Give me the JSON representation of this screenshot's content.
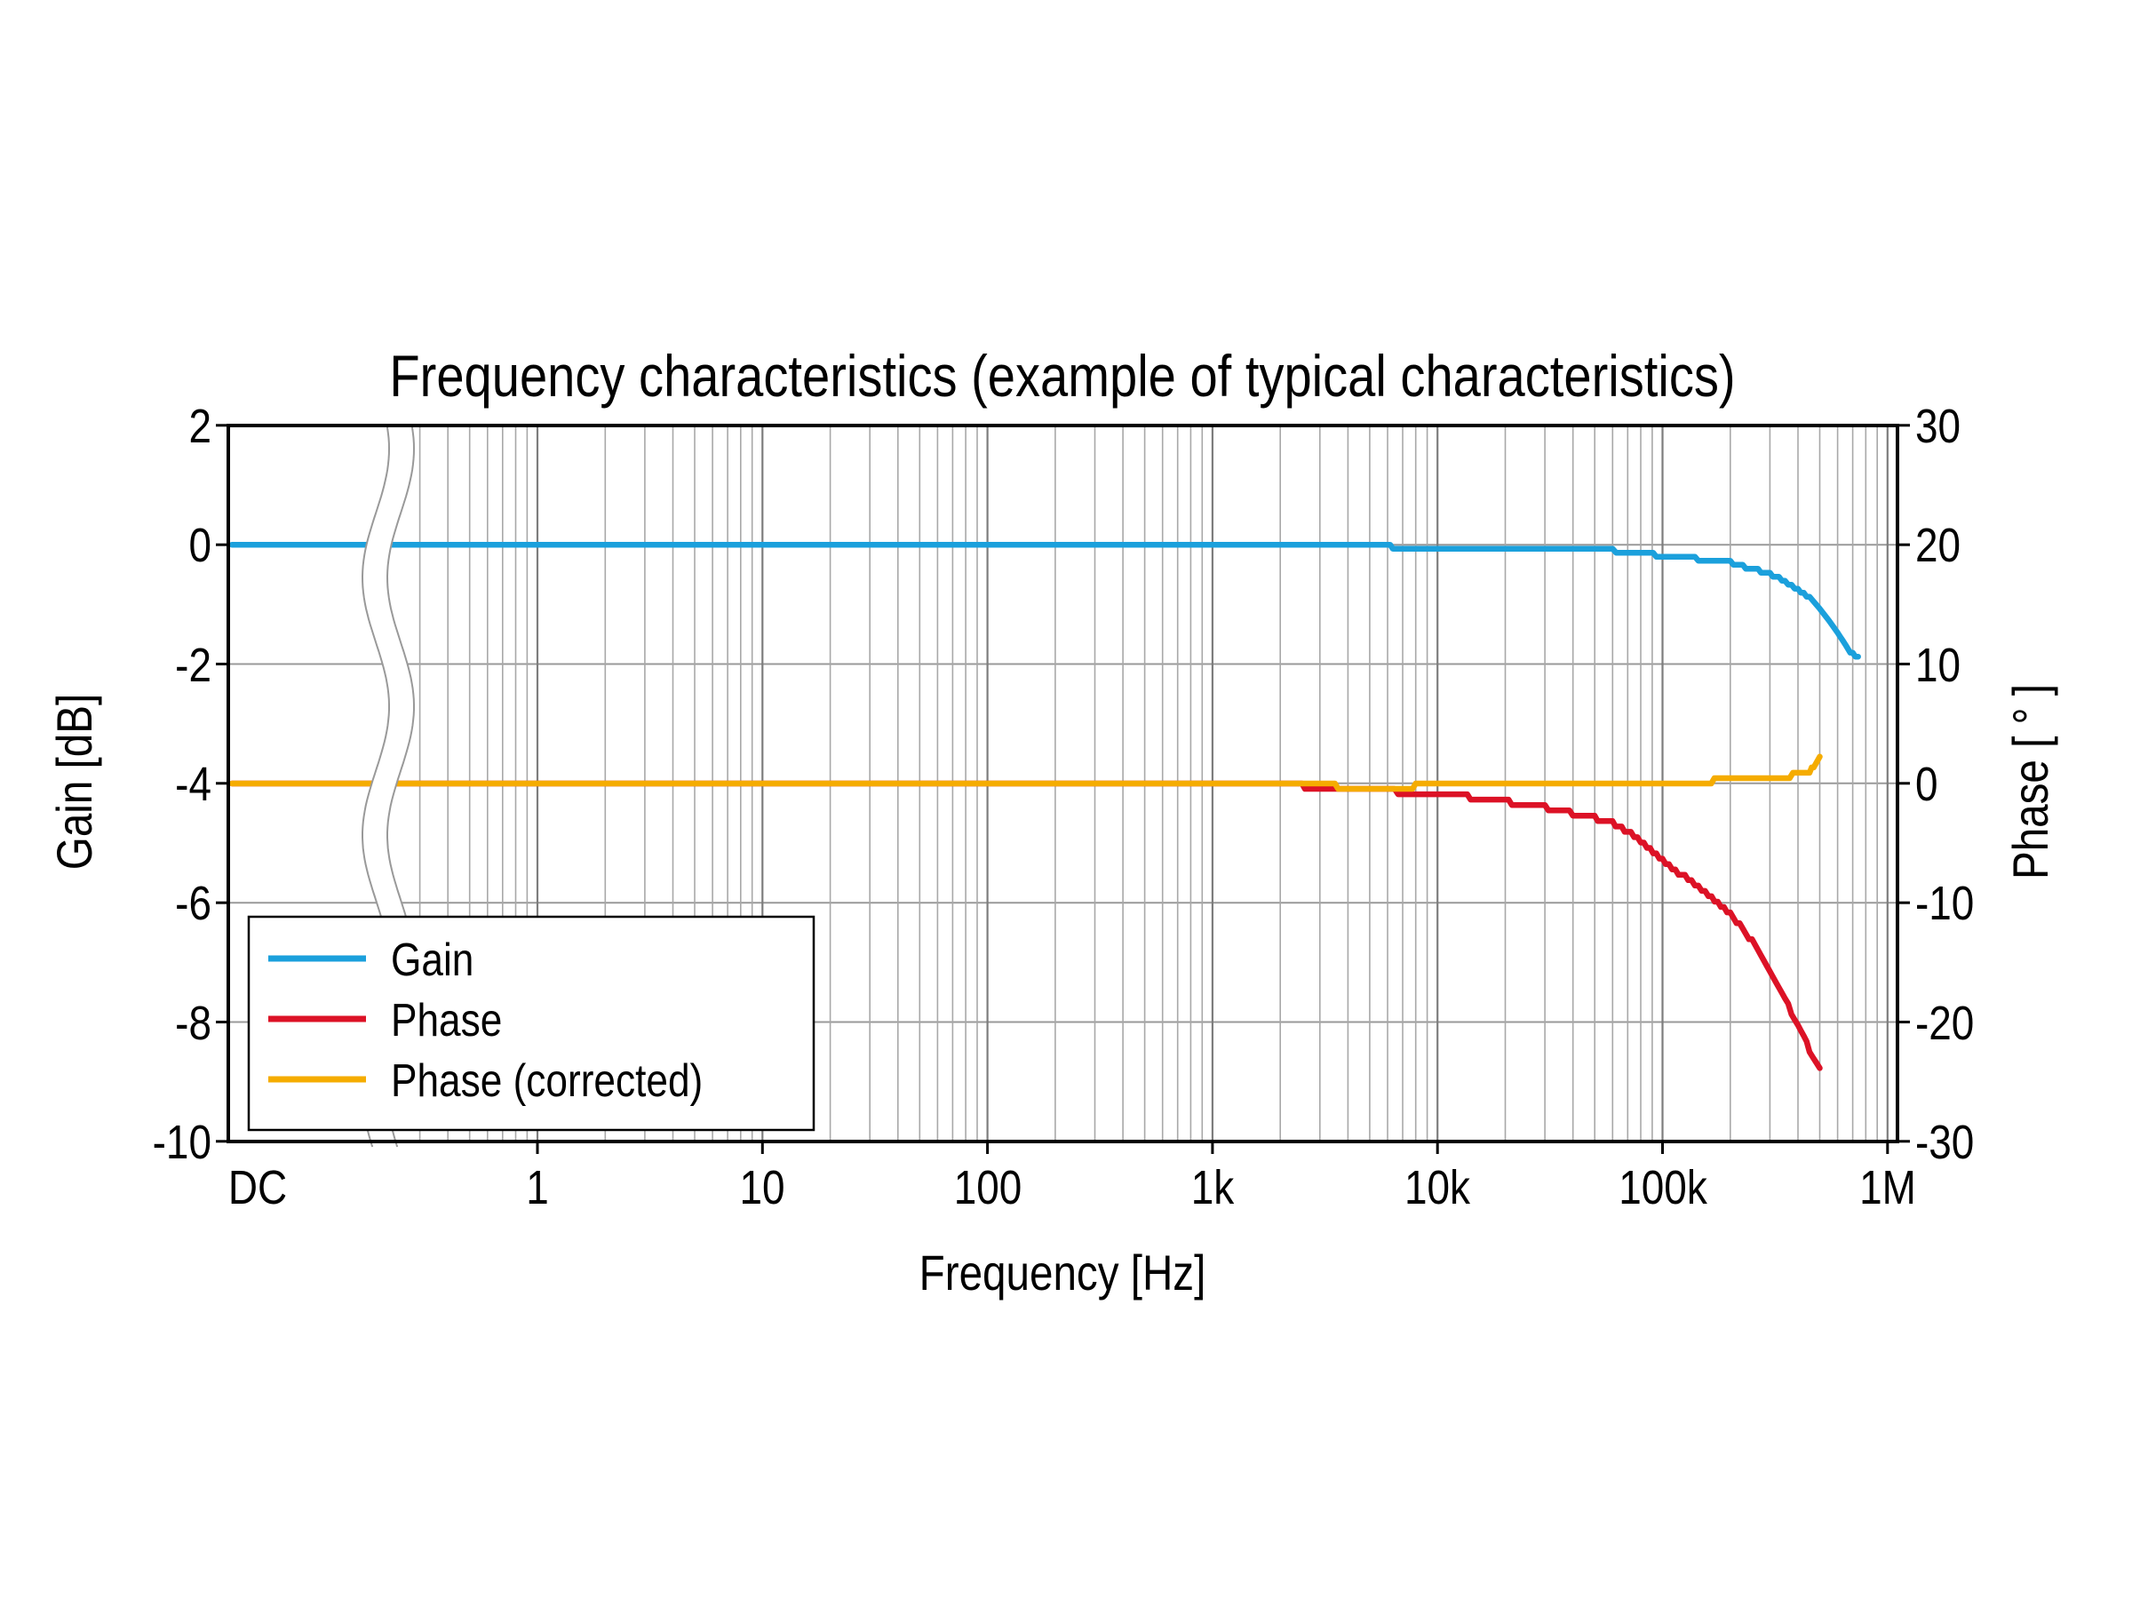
{
  "title": "Frequency characteristics (example of typical characteristics)",
  "chart_data": {
    "type": "line",
    "title": "Frequency characteristics (example of typical characteristics)",
    "x_axis": {
      "label": "Frequency [Hz]",
      "scale": "log",
      "tick_labels": [
        "DC",
        "1",
        "10",
        "100",
        "1k",
        "10k",
        "100k",
        "1M"
      ],
      "axis_break": "wavy break between DC and 0.3 Hz",
      "grid": "log minor+major gridlines"
    },
    "y_left": {
      "label": "Gain [dB]",
      "ticks": [
        2,
        0,
        -2,
        -4,
        -6,
        -8,
        -10
      ],
      "range": [
        -10,
        2
      ]
    },
    "y_right": {
      "label": "Phase [ ° ]",
      "ticks": [
        30,
        20,
        10,
        0,
        -10,
        -20,
        -30
      ],
      "range": [
        -30,
        30
      ]
    },
    "legend_position": "bottom-left",
    "series": [
      {
        "name": "Gain",
        "axis": "left",
        "color": "#1BA0DC",
        "points": [
          [
            "DC",
            0
          ],
          [
            6000,
            0
          ],
          [
            6500,
            -0.1
          ],
          [
            60000,
            -0.1
          ],
          [
            80000,
            -0.15
          ],
          [
            100000,
            -0.18
          ],
          [
            130000,
            -0.22
          ],
          [
            160000,
            -0.25
          ],
          [
            200000,
            -0.3
          ],
          [
            250000,
            -0.4
          ],
          [
            300000,
            -0.5
          ],
          [
            350000,
            -0.6
          ],
          [
            400000,
            -0.75
          ],
          [
            450000,
            -0.9
          ],
          [
            500000,
            -1.1
          ],
          [
            550000,
            -1.3
          ],
          [
            600000,
            -1.5
          ],
          [
            650000,
            -1.7
          ],
          [
            700000,
            -1.82
          ],
          [
            740000,
            -1.9
          ]
        ]
      },
      {
        "name": "Phase",
        "axis": "right",
        "color": "#DC1226",
        "points": [
          [
            "DC",
            0
          ],
          [
            2000,
            0
          ],
          [
            2500,
            -0.2
          ],
          [
            3000,
            -0.4
          ],
          [
            4000,
            -0.55
          ],
          [
            6000,
            -0.65
          ],
          [
            8000,
            -0.75
          ],
          [
            10000,
            -0.9
          ],
          [
            15000,
            -1.2
          ],
          [
            20000,
            -1.5
          ],
          [
            30000,
            -2.0
          ],
          [
            40000,
            -2.5
          ],
          [
            50000,
            -2.9
          ],
          [
            60000,
            -3.3
          ],
          [
            70000,
            -4.0
          ],
          [
            80000,
            -4.8
          ],
          [
            100000,
            -6.5
          ],
          [
            130000,
            -8.0
          ],
          [
            160000,
            -9.3
          ],
          [
            200000,
            -10.8
          ],
          [
            250000,
            -13.2
          ],
          [
            300000,
            -15.6
          ],
          [
            350000,
            -18.0
          ],
          [
            400000,
            -20.3
          ],
          [
            450000,
            -22.3
          ],
          [
            500000,
            -23.9
          ]
        ]
      },
      {
        "name": "Phase (corrected)",
        "axis": "right",
        "color": "#F5AC00",
        "points": [
          [
            "DC",
            0
          ],
          [
            3000,
            0
          ],
          [
            3500,
            -0.2
          ],
          [
            4000,
            -0.5
          ],
          [
            5000,
            -0.55
          ],
          [
            6500,
            -0.55
          ],
          [
            7500,
            -0.45
          ],
          [
            8000,
            -0.1
          ],
          [
            150000,
            -0.1
          ],
          [
            170000,
            0.25
          ],
          [
            280000,
            0.35
          ],
          [
            300000,
            0.5
          ],
          [
            380000,
            0.7
          ],
          [
            420000,
            0.9
          ],
          [
            450000,
            1.1
          ],
          [
            470000,
            1.4
          ],
          [
            485000,
            1.8
          ],
          [
            500000,
            2.2
          ]
        ]
      }
    ]
  },
  "legend": {
    "items": [
      {
        "label": "Gain"
      },
      {
        "label": "Phase"
      },
      {
        "label": "Phase (corrected)"
      }
    ]
  },
  "colors": {
    "gain": "#1BA0DC",
    "phase": "#DC1226",
    "phase_corrected": "#F5AC00",
    "grid_minor": "#a8a8a8",
    "grid_major": "#7d7d7d",
    "grid_horizontal": "#999999",
    "frame": "#000000",
    "break_line": "#999999"
  }
}
